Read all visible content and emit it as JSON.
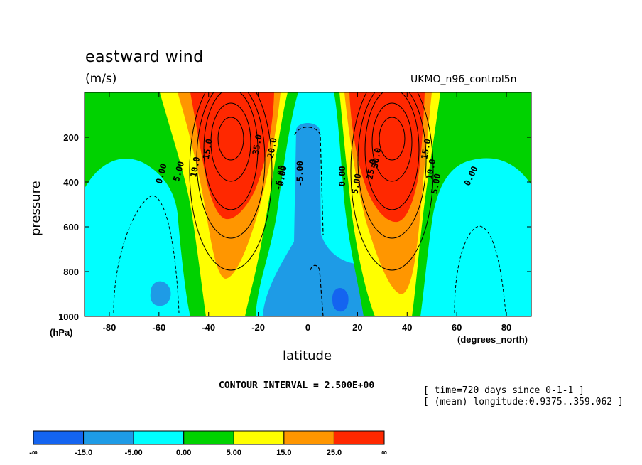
{
  "title": "eastward wind",
  "units": "(m/s)",
  "dataset": "UKMO_n96_control5n",
  "xlabel": "latitude",
  "ylabel": "pressure",
  "x_unit": "(degrees_north)",
  "y_unit": "(hPa)",
  "contour_interval": "CONTOUR INTERVAL = 2.500E+00",
  "meta": [
    "[ time=720 days since 0-1-1 ]",
    "[ (mean) longitude:0.9375..359.062 ]"
  ],
  "chart_data": {
    "type": "contour",
    "title": "eastward wind",
    "xlabel": "latitude",
    "ylabel": "pressure",
    "xlim": [
      -90,
      90
    ],
    "ylim": [
      1000,
      0
    ],
    "x_ticks": [
      "-80",
      "-60",
      "-40",
      "-20",
      "0",
      "20",
      "40",
      "60",
      "80"
    ],
    "x_tick_values": [
      -80,
      -60,
      -40,
      -20,
      0,
      20,
      40,
      60,
      80
    ],
    "y_ticks": [
      "200",
      "400",
      "600",
      "800",
      "1000"
    ],
    "y_tick_values": [
      200,
      400,
      600,
      800,
      1000
    ],
    "jets": [
      {
        "lat": -30,
        "pressure": 200,
        "max_speed": 35
      },
      {
        "lat": 35,
        "pressure": 200,
        "max_speed": 35
      }
    ],
    "contour_labels": [
      "0.00",
      "5.00",
      "10.0",
      "15.0",
      "5.00",
      "0.00",
      "10.0",
      "15.0",
      "0.00",
      "5.00",
      "-5.00",
      "0.00",
      "-5.00",
      "25.0",
      "35.0",
      "30.0",
      "20.0"
    ],
    "colorbar": {
      "boundaries": [
        "-∞",
        "-15.0",
        "-5.00",
        "0.00",
        "5.00",
        "15.0",
        "25.0",
        "∞"
      ],
      "colors": [
        "#1464f0",
        "#1e9be6",
        "#00ffff",
        "#00d200",
        "#ffff00",
        "#ff9600",
        "#ff2800"
      ]
    }
  }
}
